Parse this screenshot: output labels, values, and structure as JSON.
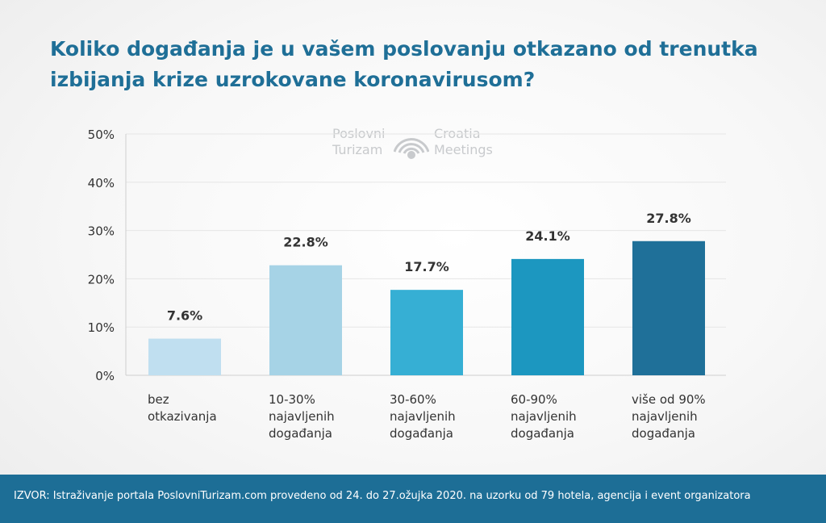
{
  "title": "Koliko događanja je u vašem poslovanju otkazano od trenutka izbijanja krize uzrokovane koronavirusom?",
  "watermark": {
    "left_line1": "Poslovni",
    "left_line2": "Turizam",
    "right_line1": "Croatia",
    "right_line2": "Meetings"
  },
  "chart_data": {
    "type": "bar",
    "categories": [
      [
        "bez",
        "otkazivanja"
      ],
      [
        "10-30%",
        "najavljenih",
        "događanja"
      ],
      [
        "30-60%",
        "najavljenih",
        "događanja"
      ],
      [
        "60-90%",
        "najavljenih",
        "događanja"
      ],
      [
        "više od 90%",
        "najavljenih",
        "događanja"
      ]
    ],
    "values": [
      7.6,
      22.8,
      17.7,
      24.1,
      27.8
    ],
    "data_labels": [
      "7.6%",
      "22.8%",
      "17.7%",
      "24.1%",
      "27.8%"
    ],
    "bar_colors": [
      "#c0dff0",
      "#a6d3e6",
      "#36afd4",
      "#1c97c0",
      "#1f7099"
    ],
    "yticks": [
      0,
      10,
      20,
      30,
      40,
      50
    ],
    "ytick_labels": [
      "0%",
      "10%",
      "20%",
      "30%",
      "40%",
      "50%"
    ],
    "ylim": [
      0,
      50
    ],
    "grid": true,
    "legend": "none"
  },
  "footer": {
    "text": "IZVOR: Istraživanje portala PoslovniTurizam.com provedeno od 24. do 27.ožujka 2020. na uzorku od 79 hotela, agencija i event organizatora"
  }
}
